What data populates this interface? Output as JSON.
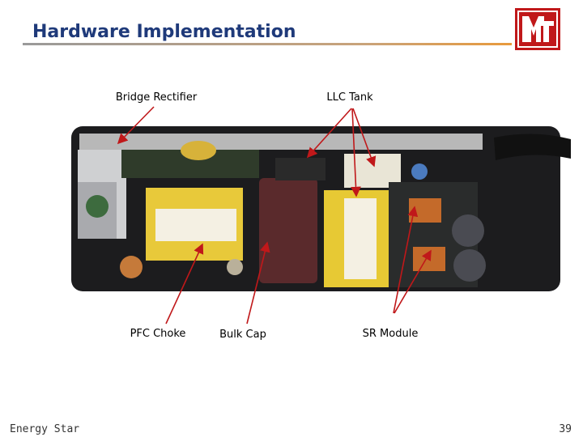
{
  "header": {
    "title": "Hardware Implementation"
  },
  "labels": {
    "bridge_rectifier": "Bridge Rectifier",
    "llc_tank": "LLC Tank",
    "pfc_choke": "PFC Choke",
    "bulk_cap": "Bulk Cap",
    "sr_module": "SR Module"
  },
  "footer": {
    "text": "Energy Star",
    "page_number": "39"
  }
}
